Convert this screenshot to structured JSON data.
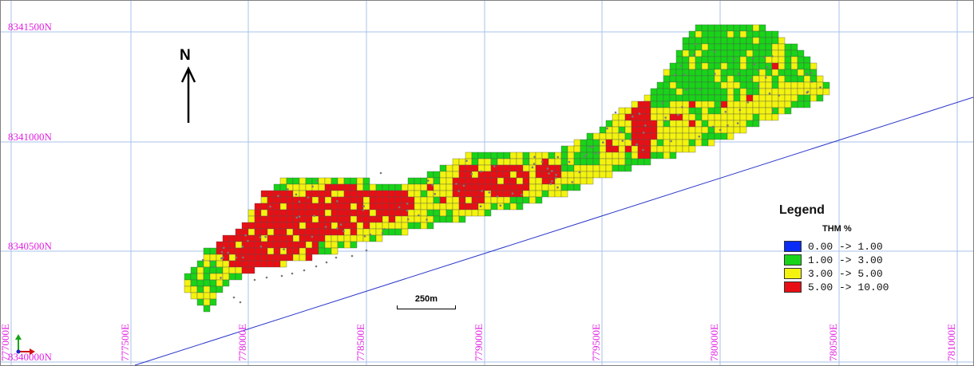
{
  "map": {
    "northing_labels": [
      "8341500N",
      "8341000N",
      "8340500N",
      "8340000N"
    ],
    "easting_labels": [
      "777000E",
      "777500E",
      "778000E",
      "778500E",
      "779000E",
      "779500E",
      "780000E",
      "780500E",
      "781000E"
    ],
    "north_arrow_label": "N",
    "scale_bar_label": "250m",
    "colors": {
      "grid": "#a9c2e8",
      "coord_label": "#e020e0",
      "boundary_line": "#2a35c9",
      "cell_edge": "#505050",
      "drillhole": "#7a7a7a"
    }
  },
  "legend": {
    "title": "Legend",
    "subtitle": "THM %",
    "items": [
      {
        "label": "0.00 -> 1.00",
        "color": "#0a2cf5"
      },
      {
        "label": "1.00 -> 3.00",
        "color": "#19d319"
      },
      {
        "label": "3.00 -> 5.00",
        "color": "#f3f30f"
      },
      {
        "label": "5.00 -> 10.00",
        "color": "#e80f14"
      }
    ]
  }
}
